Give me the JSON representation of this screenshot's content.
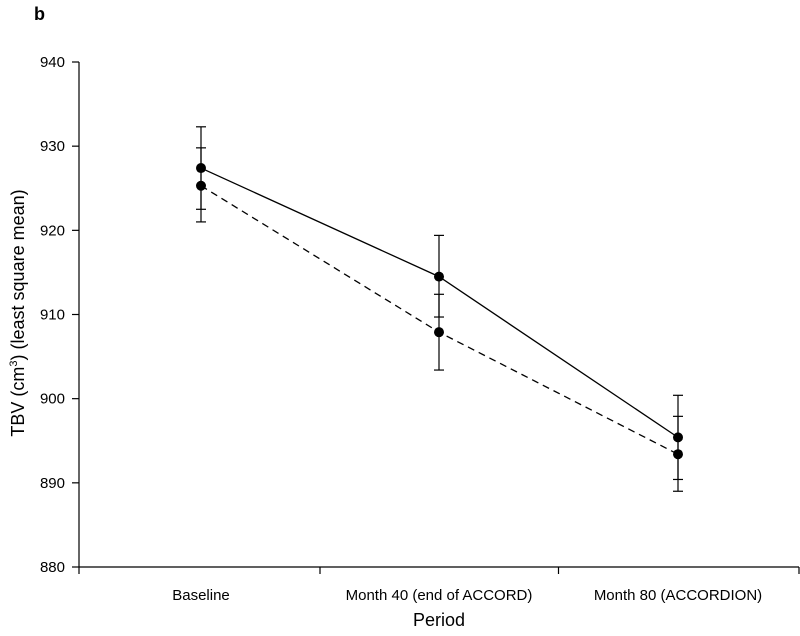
{
  "chart_data": {
    "type": "line",
    "panel_label": "b",
    "xlabel": "Period",
    "ylabel_main": "TBV (cm",
    "ylabel_sup": "3",
    "ylabel_rest": ") (least square mean)",
    "categories": [
      "Baseline",
      "Month 40 (end of ACCORD)",
      "Month 80 (ACCORDION)"
    ],
    "ylim": [
      880,
      940
    ],
    "yticks": [
      880,
      890,
      900,
      910,
      920,
      930,
      940
    ],
    "grid": false,
    "legend": "none",
    "series": [
      {
        "style": "solid",
        "values": [
          927.4,
          914.5,
          895.4
        ],
        "err_low": [
          922.5,
          909.7,
          890.4
        ],
        "err_high": [
          932.3,
          919.4,
          900.4
        ]
      },
      {
        "style": "dashed",
        "values": [
          925.3,
          907.9,
          893.4
        ],
        "err_low": [
          921.0,
          903.4,
          889.0
        ],
        "err_high": [
          929.8,
          912.4,
          897.9
        ]
      }
    ]
  }
}
